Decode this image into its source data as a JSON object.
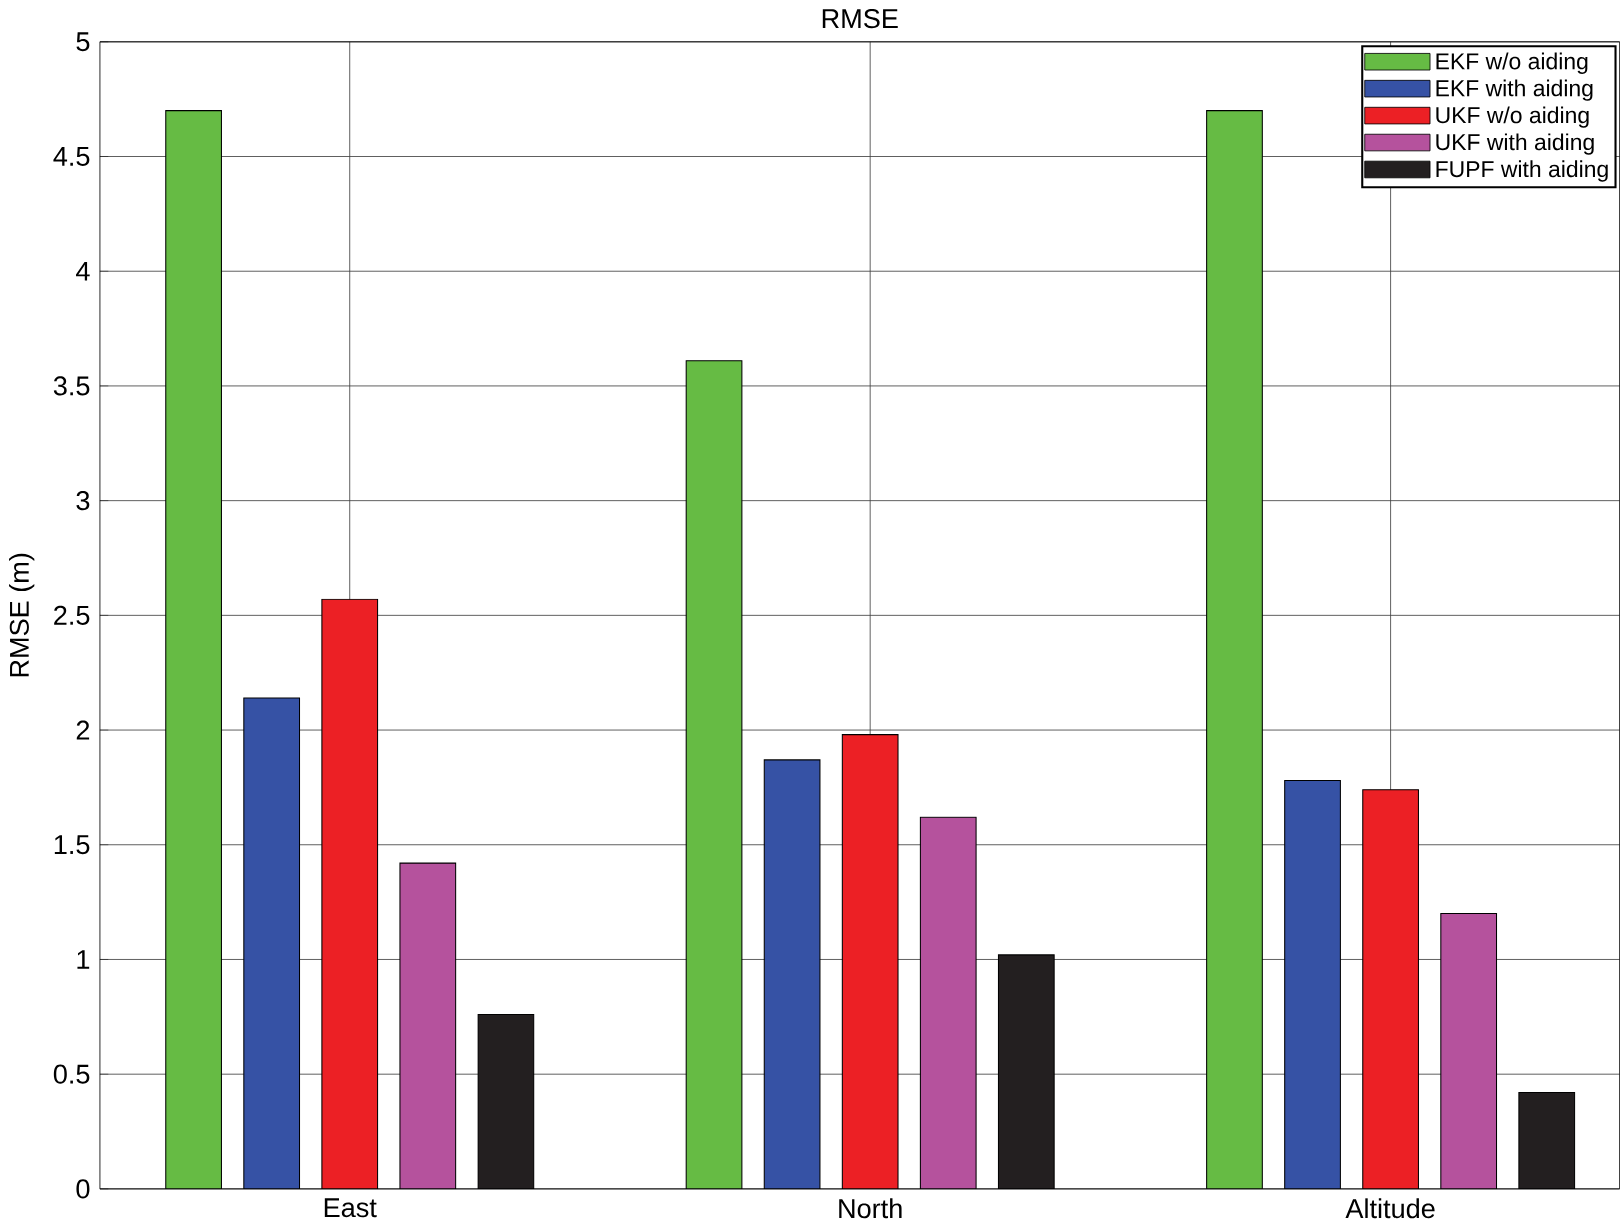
{
  "chart_data": {
    "type": "bar",
    "title": "RMSE",
    "ylabel": "RMSE (m)",
    "categories": [
      "East",
      "North",
      "Altitude"
    ],
    "series": [
      {
        "name": "EKF w/o aiding",
        "color": "#66bb44",
        "values": [
          4.7,
          3.61,
          4.7
        ]
      },
      {
        "name": "EKF with aiding",
        "color": "#3652a5",
        "values": [
          2.14,
          1.87,
          1.78
        ]
      },
      {
        "name": "UKF w/o aiding",
        "color": "#ec2025",
        "values": [
          2.57,
          1.98,
          1.74
        ]
      },
      {
        "name": "UKF with aiding",
        "color": "#b5529d",
        "values": [
          1.42,
          1.62,
          1.2
        ]
      },
      {
        "name": "FUPF with aiding",
        "color": "#231f20",
        "values": [
          0.76,
          1.02,
          0.42
        ]
      }
    ],
    "ylim": [
      0,
      5
    ],
    "yticks": [
      0,
      0.5,
      1,
      1.5,
      2,
      2.5,
      3,
      3.5,
      4,
      4.5,
      5
    ],
    "grid": true,
    "legend": "top right"
  }
}
